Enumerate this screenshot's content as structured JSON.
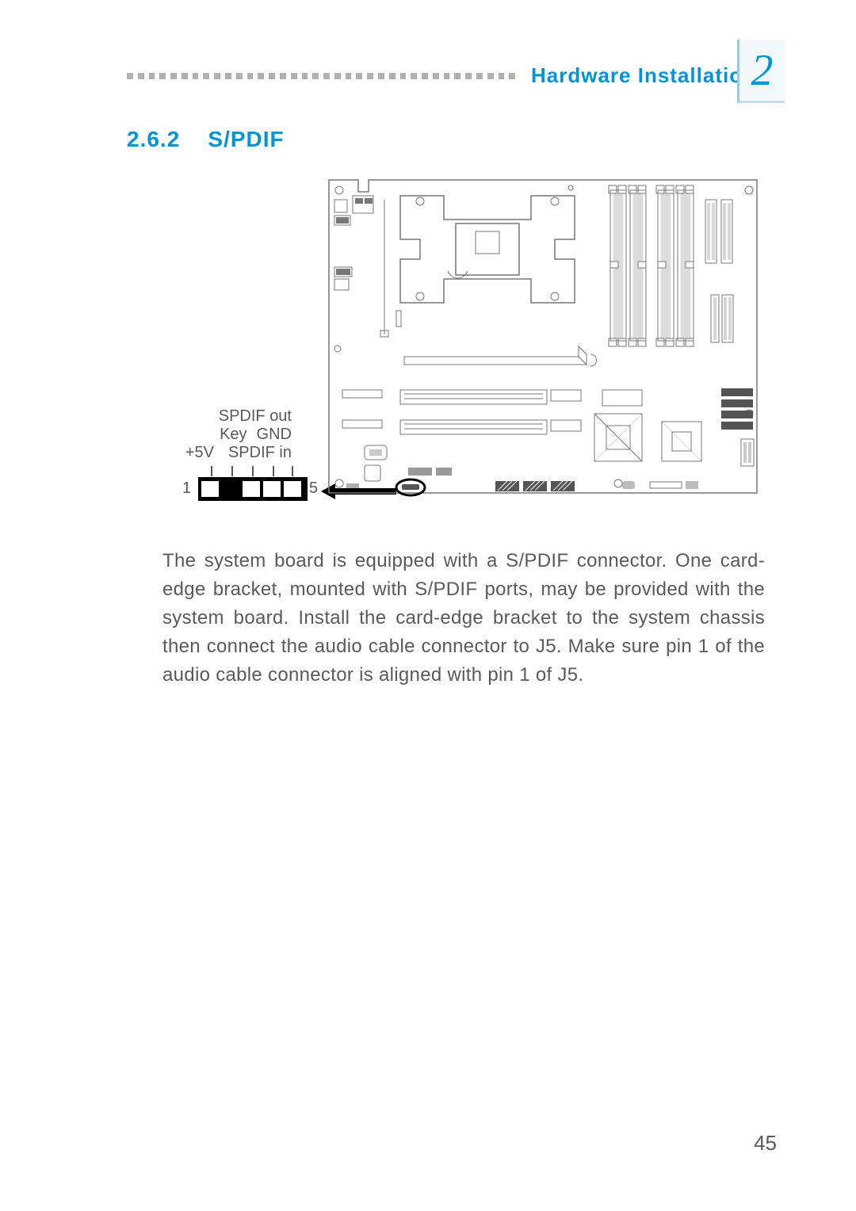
{
  "header": {
    "title": "Hardware Installation",
    "chapter_number": "2",
    "dot_color": "#b0b0b0",
    "title_color": "#0095d8",
    "dot_count": 36
  },
  "section": {
    "number": "2.6.2",
    "title": "S/PDIF"
  },
  "diagram": {
    "pin_labels": {
      "spdif_out": "SPDIF out",
      "key": "Key",
      "gnd": "GND",
      "plus5v": "+5V",
      "spdif_in": "SPDIF in"
    },
    "pin_start": "1",
    "pin_end": "5",
    "connector_color": "#000000",
    "label_color": "#5a5a5a"
  },
  "body": {
    "paragraph": "The system board is equipped with a S/PDIF connector. One card-edge bracket, mounted with S/PDIF ports, may be provided with the system board. Install the card-edge bracket to the system chassis then connect the audio cable connector to J5. Make sure pin 1 of the audio cable connector is aligned with pin 1 of J5."
  },
  "footer": {
    "page_number": "45"
  }
}
